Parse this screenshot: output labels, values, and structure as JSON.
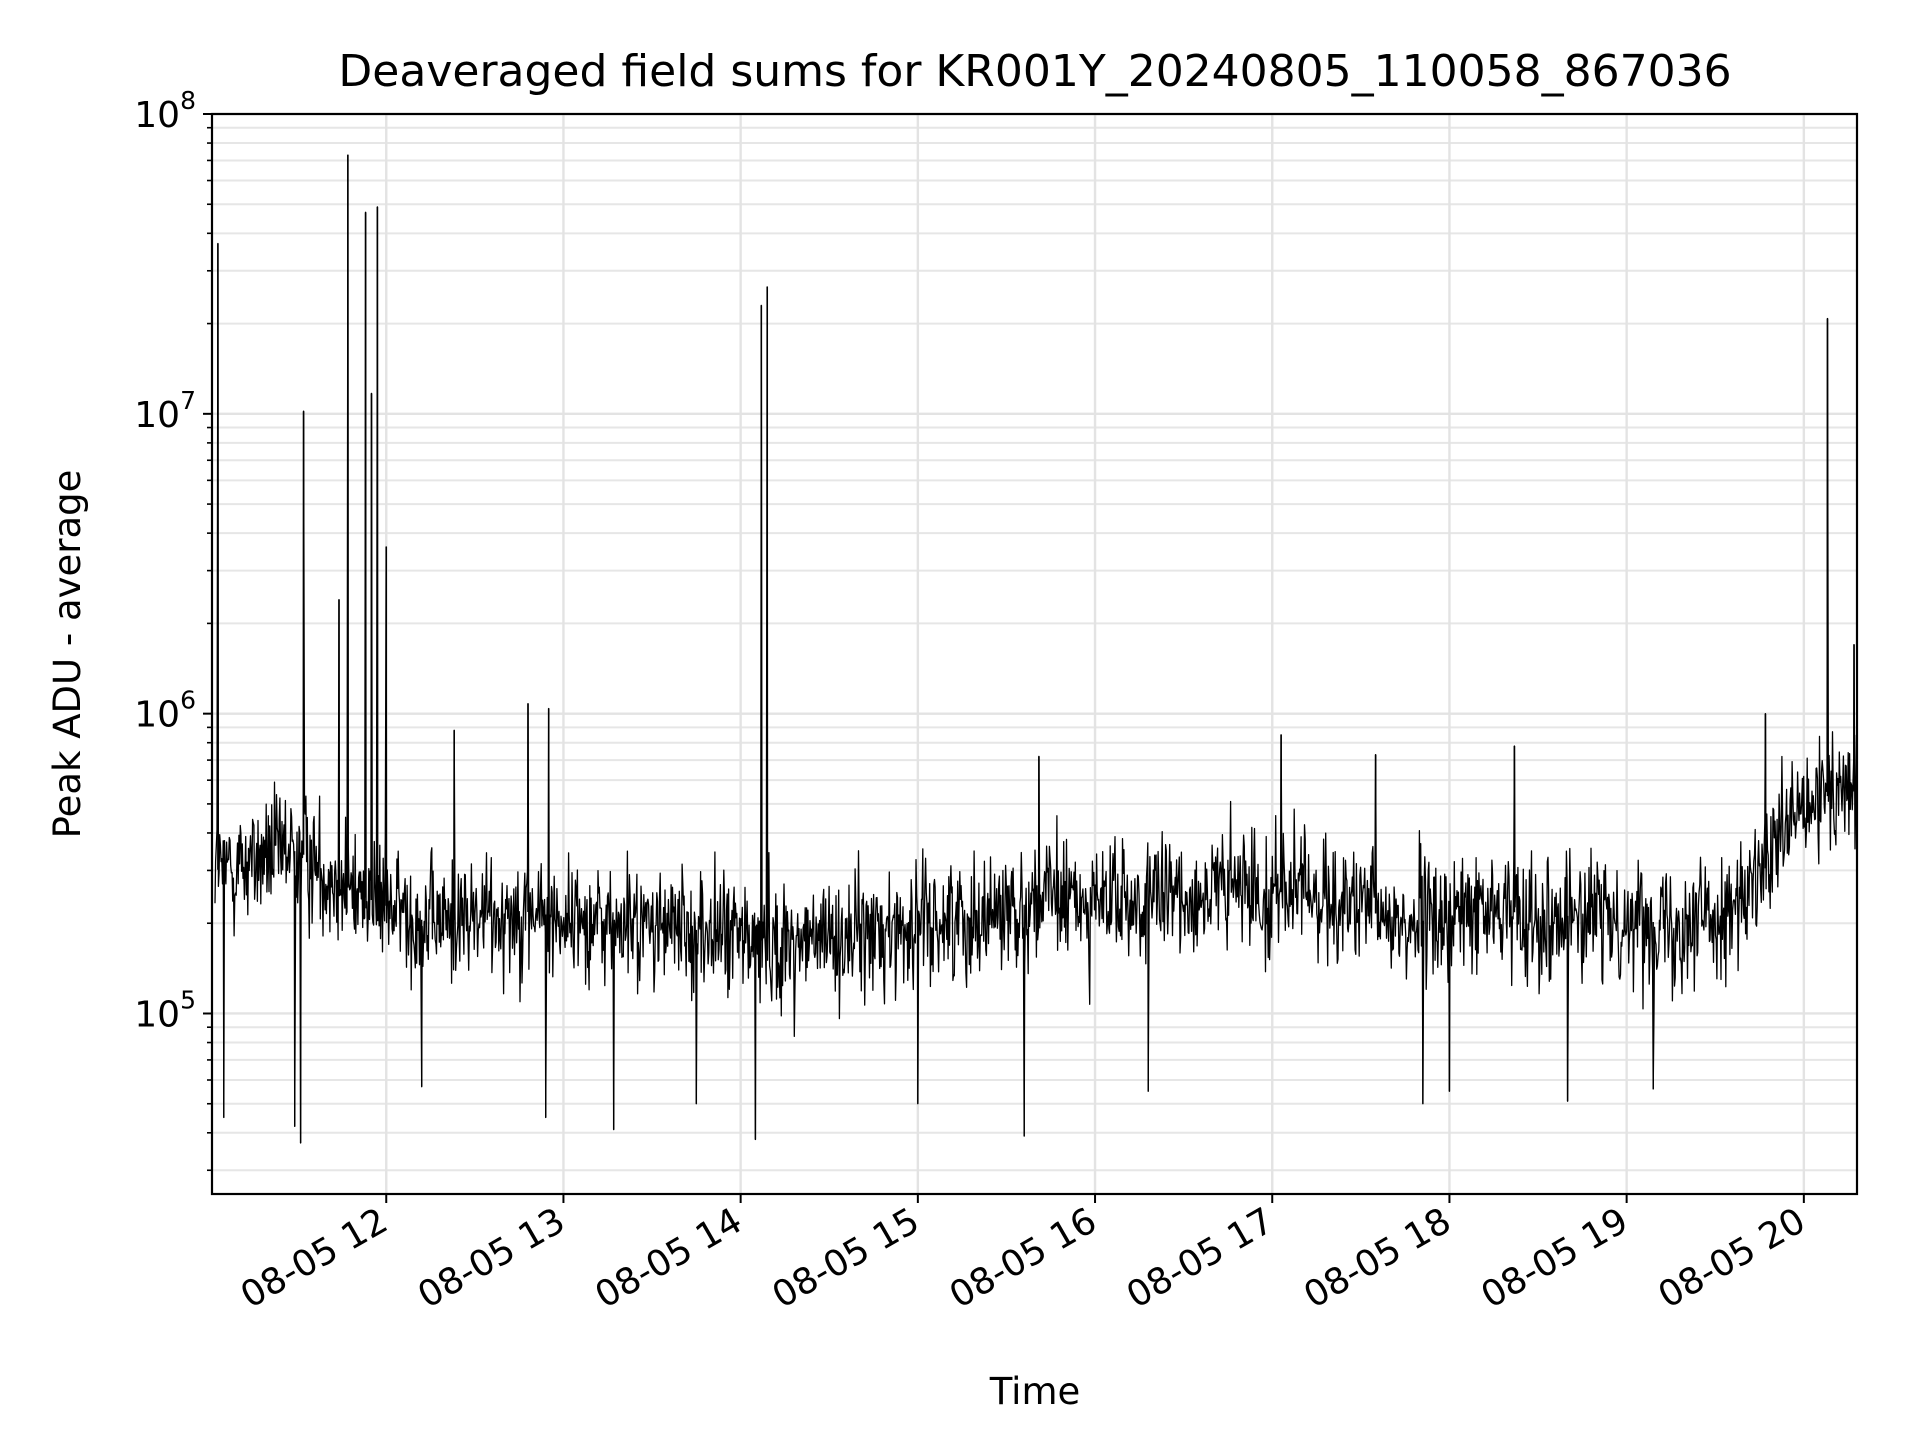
{
  "chart_data": {
    "type": "line",
    "title": "Deaveraged field sums for KR001Y_20240805_110058_867036",
    "xlabel": "Time",
    "ylabel": "Peak ADU - average",
    "yscale": "log",
    "ylim": [
      25000,
      100000000
    ],
    "xlim": [
      "08-05 11:01",
      "08-05 20:18"
    ],
    "grid": true,
    "line_color": "#000000",
    "x_ticks": [
      "08-05 12",
      "08-05 13",
      "08-05 14",
      "08-05 15",
      "08-05 16",
      "08-05 17",
      "08-05 18",
      "08-05 19",
      "08-05 20"
    ],
    "y_ticks": [
      {
        "value": 100000,
        "base": "10",
        "exp": "5"
      },
      {
        "value": 1000000,
        "base": "10",
        "exp": "6"
      },
      {
        "value": 10000000,
        "base": "10",
        "exp": "7"
      },
      {
        "value": 100000000,
        "base": "10",
        "exp": "8"
      }
    ],
    "series": [
      {
        "x": [
          "08-05 11:02",
          "08-05 11:30",
          "08-05 11:50",
          "08-05 12:15",
          "08-05 12:45",
          "08-05 13:15",
          "08-05 13:45",
          "08-05 14:15",
          "08-05 14:45",
          "08-05 15:15",
          "08-05 15:45",
          "08-05 16:15",
          "08-05 16:45",
          "08-05 17:15",
          "08-05 17:45",
          "08-05 18:15",
          "08-05 18:45",
          "08-05 19:15",
          "08-05 19:40",
          "08-05 19:55",
          "08-05 20:10"
        ],
        "y": [
          300000,
          350000,
          250000,
          200000,
          220000,
          200000,
          190000,
          170000,
          185000,
          210000,
          240000,
          230000,
          260000,
          250000,
          200000,
          220000,
          210000,
          200000,
          230000,
          420000,
          550000
        ]
      }
    ],
    "spikes": [
      {
        "x": "08-05 11:03",
        "y": 37000000
      },
      {
        "x": "08-05 11:32",
        "y": 10200000
      },
      {
        "x": "08-05 11:44",
        "y": 2400000
      },
      {
        "x": "08-05 11:47",
        "y": 73000000
      },
      {
        "x": "08-05 11:53",
        "y": 47000000
      },
      {
        "x": "08-05 11:55",
        "y": 11700000
      },
      {
        "x": "08-05 11:57",
        "y": 49000000
      },
      {
        "x": "08-05 12:00",
        "y": 3600000
      },
      {
        "x": "08-05 12:23",
        "y": 880000
      },
      {
        "x": "08-05 12:48",
        "y": 1080000
      },
      {
        "x": "08-05 12:55",
        "y": 1040000
      },
      {
        "x": "08-05 14:07",
        "y": 23000000
      },
      {
        "x": "08-05 14:09",
        "y": 26500000
      },
      {
        "x": "08-05 15:41",
        "y": 720000
      },
      {
        "x": "08-05 17:03",
        "y": 850000
      },
      {
        "x": "08-05 17:35",
        "y": 730000
      },
      {
        "x": "08-05 18:22",
        "y": 780000
      },
      {
        "x": "08-05 19:47",
        "y": 1000000
      },
      {
        "x": "08-05 20:08",
        "y": 20800000
      },
      {
        "x": "08-05 20:17",
        "y": 1700000
      }
    ],
    "dips": [
      {
        "x": "08-05 11:05",
        "y": 45000
      },
      {
        "x": "08-05 11:29",
        "y": 42000
      },
      {
        "x": "08-05 11:31",
        "y": 37000
      },
      {
        "x": "08-05 12:12",
        "y": 57000
      },
      {
        "x": "08-05 12:54",
        "y": 45000
      },
      {
        "x": "08-05 13:17",
        "y": 41000
      },
      {
        "x": "08-05 13:45",
        "y": 50000
      },
      {
        "x": "08-05 14:05",
        "y": 38000
      },
      {
        "x": "08-05 15:00",
        "y": 50000
      },
      {
        "x": "08-05 15:36",
        "y": 39000
      },
      {
        "x": "08-05 16:18",
        "y": 55000
      },
      {
        "x": "08-05 17:51",
        "y": 50000
      },
      {
        "x": "08-05 18:00",
        "y": 55000
      },
      {
        "x": "08-05 18:40",
        "y": 51000
      },
      {
        "x": "08-05 19:09",
        "y": 56000
      }
    ]
  }
}
